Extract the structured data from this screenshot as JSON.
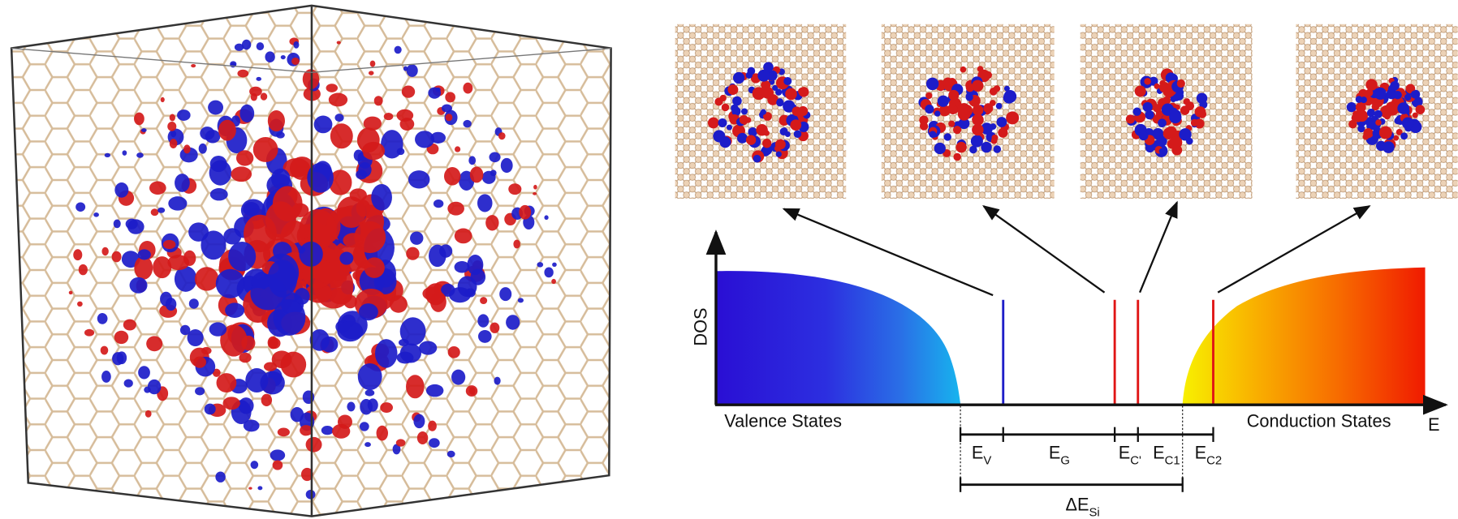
{
  "figure": {
    "dos_label": "DOS",
    "energy_axis_label": "E",
    "valence_label": "Valence States",
    "conduction_label": "Conduction States",
    "energy_labels": [
      {
        "main": "E",
        "sub": "V"
      },
      {
        "main": "E",
        "sub": "G"
      },
      {
        "main": "E",
        "sub": "C'"
      },
      {
        "main": "E",
        "sub": "C1"
      },
      {
        "main": "E",
        "sub": "C2"
      }
    ],
    "delta_label": {
      "main": "ΔE",
      "sub": "Si"
    }
  }
}
